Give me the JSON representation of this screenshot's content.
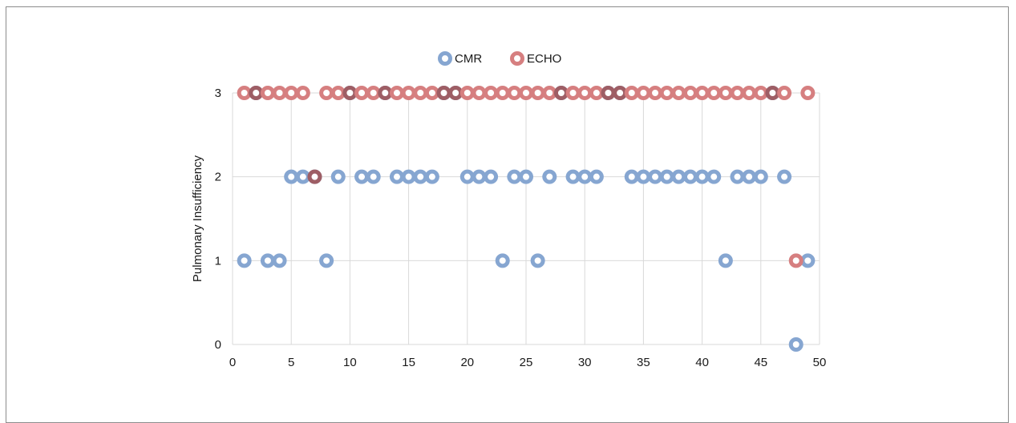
{
  "colors": {
    "cmr": "#86a6d1",
    "echo": "#d67f80",
    "echo_overlap": "#9e5e65",
    "grid": "#d9d9d9",
    "frame": "#8c8c8c"
  },
  "chart_data": {
    "type": "scatter",
    "title": "",
    "xlabel": "",
    "ylabel": "Pulmonary Insufficiency",
    "xlim": [
      0,
      50
    ],
    "ylim": [
      0,
      3
    ],
    "x_ticks": [
      0,
      5,
      10,
      15,
      20,
      25,
      30,
      35,
      40,
      45,
      50
    ],
    "y_ticks": [
      0,
      1,
      2,
      3
    ],
    "grid": true,
    "legend_position": "top",
    "series": [
      {
        "name": "CMR",
        "color": "#86a6d1",
        "points": [
          [
            1,
            1
          ],
          [
            2,
            3
          ],
          [
            3,
            1
          ],
          [
            4,
            1
          ],
          [
            5,
            2
          ],
          [
            6,
            2
          ],
          [
            7,
            2
          ],
          [
            8,
            1
          ],
          [
            9,
            2
          ],
          [
            10,
            3
          ],
          [
            11,
            2
          ],
          [
            12,
            2
          ],
          [
            13,
            3
          ],
          [
            14,
            2
          ],
          [
            15,
            2
          ],
          [
            16,
            2
          ],
          [
            17,
            2
          ],
          [
            18,
            3
          ],
          [
            19,
            3
          ],
          [
            20,
            2
          ],
          [
            21,
            2
          ],
          [
            22,
            2
          ],
          [
            23,
            1
          ],
          [
            24,
            2
          ],
          [
            25,
            2
          ],
          [
            26,
            1
          ],
          [
            27,
            2
          ],
          [
            28,
            3
          ],
          [
            29,
            2
          ],
          [
            30,
            2
          ],
          [
            31,
            2
          ],
          [
            32,
            3
          ],
          [
            33,
            3
          ],
          [
            34,
            2
          ],
          [
            35,
            2
          ],
          [
            36,
            2
          ],
          [
            37,
            2
          ],
          [
            38,
            2
          ],
          [
            39,
            2
          ],
          [
            40,
            2
          ],
          [
            41,
            2
          ],
          [
            42,
            1
          ],
          [
            43,
            2
          ],
          [
            44,
            2
          ],
          [
            45,
            2
          ],
          [
            46,
            3
          ],
          [
            47,
            2
          ],
          [
            48,
            0
          ],
          [
            49,
            1
          ]
        ]
      },
      {
        "name": "ECHO",
        "color": "#d67f80",
        "points": [
          [
            1,
            3
          ],
          [
            2,
            3
          ],
          [
            3,
            3
          ],
          [
            4,
            3
          ],
          [
            5,
            3
          ],
          [
            6,
            3
          ],
          [
            7,
            2
          ],
          [
            8,
            3
          ],
          [
            9,
            3
          ],
          [
            10,
            3
          ],
          [
            11,
            3
          ],
          [
            12,
            3
          ],
          [
            13,
            3
          ],
          [
            14,
            3
          ],
          [
            15,
            3
          ],
          [
            16,
            3
          ],
          [
            17,
            3
          ],
          [
            18,
            3
          ],
          [
            19,
            3
          ],
          [
            20,
            3
          ],
          [
            21,
            3
          ],
          [
            22,
            3
          ],
          [
            23,
            3
          ],
          [
            24,
            3
          ],
          [
            25,
            3
          ],
          [
            26,
            3
          ],
          [
            27,
            3
          ],
          [
            28,
            3
          ],
          [
            29,
            3
          ],
          [
            30,
            3
          ],
          [
            31,
            3
          ],
          [
            32,
            3
          ],
          [
            33,
            3
          ],
          [
            34,
            3
          ],
          [
            35,
            3
          ],
          [
            36,
            3
          ],
          [
            37,
            3
          ],
          [
            38,
            3
          ],
          [
            39,
            3
          ],
          [
            40,
            3
          ],
          [
            41,
            3
          ],
          [
            42,
            3
          ],
          [
            43,
            3
          ],
          [
            44,
            3
          ],
          [
            45,
            3
          ],
          [
            46,
            3
          ],
          [
            47,
            3
          ],
          [
            48,
            1
          ],
          [
            49,
            3
          ]
        ]
      }
    ]
  }
}
